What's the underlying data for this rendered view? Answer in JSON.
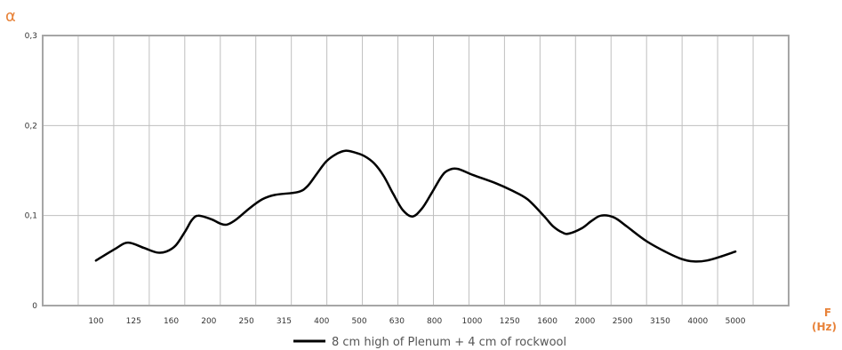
{
  "chart_data": {
    "type": "line",
    "ylabel": "α",
    "xlabel_line1": "F",
    "xlabel_line2": "(Hz)",
    "y_ticks": [
      "0",
      "0,1",
      "0,2",
      "0,3"
    ],
    "ylim": [
      0,
      0.3
    ],
    "grid": true,
    "legend_position": "bottom-center",
    "colors": {
      "line": "#000000",
      "grid": "#bfbfbf",
      "frame": "#a6a6a6",
      "accent": "#e8833a"
    },
    "categories": [
      "100",
      "125",
      "160",
      "200",
      "250",
      "315",
      "400",
      "500",
      "630",
      "800",
      "1000",
      "1250",
      "1600",
      "2000",
      "2500",
      "3150",
      "4000",
      "5000"
    ],
    "series": [
      {
        "name": "8 cm high of Plenum + 4 cm of rockwool",
        "points": [
          [
            0,
            0.05
          ],
          [
            0.6,
            0.063
          ],
          [
            1,
            0.07
          ],
          [
            1.5,
            0.064
          ],
          [
            1.9,
            0.059
          ],
          [
            2.2,
            0.06
          ],
          [
            2.5,
            0.067
          ],
          [
            2.8,
            0.083
          ],
          [
            3,
            0.095
          ],
          [
            3.2,
            0.1
          ],
          [
            3.6,
            0.096
          ],
          [
            3.9,
            0.091
          ],
          [
            4.1,
            0.09
          ],
          [
            4.4,
            0.096
          ],
          [
            4.8,
            0.108
          ],
          [
            5.2,
            0.118
          ],
          [
            5.6,
            0.123
          ],
          [
            6.3,
            0.126
          ],
          [
            6.6,
            0.132
          ],
          [
            6.9,
            0.146
          ],
          [
            7.2,
            0.16
          ],
          [
            7.5,
            0.168
          ],
          [
            7.8,
            0.172
          ],
          [
            8.1,
            0.17
          ],
          [
            8.4,
            0.166
          ],
          [
            8.7,
            0.158
          ],
          [
            9,
            0.144
          ],
          [
            9.3,
            0.124
          ],
          [
            9.6,
            0.106
          ],
          [
            9.9,
            0.099
          ],
          [
            10.2,
            0.108
          ],
          [
            10.5,
            0.125
          ],
          [
            10.8,
            0.143
          ],
          [
            11,
            0.15
          ],
          [
            11.3,
            0.152
          ],
          [
            11.8,
            0.145
          ],
          [
            12.5,
            0.136
          ],
          [
            13,
            0.128
          ],
          [
            13.5,
            0.118
          ],
          [
            14,
            0.1
          ],
          [
            14.3,
            0.088
          ],
          [
            14.6,
            0.081
          ],
          [
            14.8,
            0.08
          ],
          [
            15.2,
            0.086
          ],
          [
            15.5,
            0.094
          ],
          [
            15.8,
            0.1
          ],
          [
            16.2,
            0.098
          ],
          [
            16.6,
            0.088
          ],
          [
            17.2,
            0.072
          ],
          [
            17.8,
            0.06
          ],
          [
            18.3,
            0.052
          ],
          [
            18.7,
            0.049
          ],
          [
            19.1,
            0.05
          ],
          [
            19.5,
            0.054
          ],
          [
            20,
            0.06
          ]
        ]
      }
    ]
  }
}
